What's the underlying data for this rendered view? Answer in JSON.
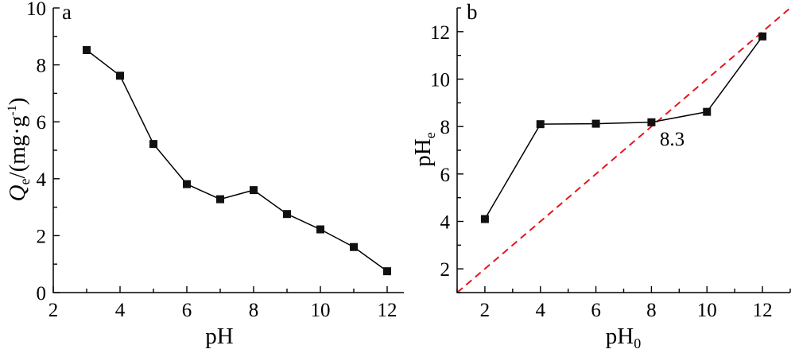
{
  "chart_data": [
    {
      "type": "line",
      "panel_label": "a",
      "xlabel": "pH",
      "ylabel": {
        "main": "Q",
        "sub": "e",
        "rest": "/(mg·g",
        "sup": "-1",
        "close": ")"
      },
      "xlim": [
        2,
        12.5
      ],
      "ylim": [
        0,
        10
      ],
      "xticks": [
        2,
        4,
        6,
        8,
        10,
        12
      ],
      "yticks": [
        0,
        2,
        4,
        6,
        8,
        10
      ],
      "series": [
        {
          "x": [
            3,
            4,
            5,
            6,
            7,
            8,
            9,
            10,
            11,
            12
          ],
          "y": [
            8.52,
            7.62,
            5.22,
            3.81,
            3.28,
            3.6,
            2.76,
            2.22,
            1.6,
            0.75
          ]
        }
      ],
      "colors": {
        "line": "#000000",
        "marker": "#111111"
      }
    },
    {
      "type": "line",
      "panel_label": "b",
      "xlabel": {
        "main": "pH",
        "sub": "0"
      },
      "ylabel": {
        "main": "pH",
        "sub": "e"
      },
      "xlim": [
        1,
        13
      ],
      "ylim": [
        1,
        13
      ],
      "xticks": [
        2,
        4,
        6,
        8,
        10,
        12
      ],
      "yticks": [
        2,
        4,
        6,
        8,
        10,
        12
      ],
      "series": [
        {
          "x": [
            2,
            4,
            6,
            8,
            10,
            12
          ],
          "y": [
            4.1,
            8.1,
            8.12,
            8.18,
            8.62,
            11.8
          ]
        }
      ],
      "reference_line": {
        "x": [
          1,
          13
        ],
        "y": [
          1,
          13
        ],
        "style": "dashed",
        "color": "#e8141c"
      },
      "annotation": {
        "text": "8.3",
        "x": 8.3,
        "y": 8.3
      },
      "colors": {
        "line": "#000000",
        "marker": "#111111"
      }
    }
  ]
}
